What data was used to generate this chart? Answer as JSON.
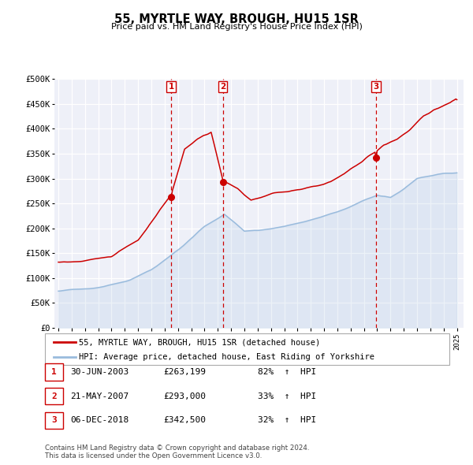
{
  "title": "55, MYRTLE WAY, BROUGH, HU15 1SR",
  "subtitle": "Price paid vs. HM Land Registry's House Price Index (HPI)",
  "ylim": [
    0,
    500000
  ],
  "xlim_start": 1994.7,
  "xlim_end": 2025.5,
  "background_color": "#ffffff",
  "plot_bg_color": "#eef0f8",
  "grid_color": "#ffffff",
  "sale_color": "#cc0000",
  "hpi_color": "#99bbdd",
  "sale_label": "55, MYRTLE WAY, BROUGH, HU15 1SR (detached house)",
  "hpi_label": "HPI: Average price, detached house, East Riding of Yorkshire",
  "transactions": [
    {
      "num": 1,
      "date": "30-JUN-2003",
      "price": 263199,
      "year": 2003.49,
      "pct": "82%",
      "dir": "↑"
    },
    {
      "num": 2,
      "date": "21-MAY-2007",
      "price": 293000,
      "year": 2007.38,
      "pct": "33%",
      "dir": "↑"
    },
    {
      "num": 3,
      "date": "06-DEC-2018",
      "price": 342500,
      "year": 2018.92,
      "pct": "32%",
      "dir": "↑"
    }
  ],
  "footer": "Contains HM Land Registry data © Crown copyright and database right 2024.\nThis data is licensed under the Open Government Licence v3.0.",
  "ytick_labels": [
    "£0",
    "£50K",
    "£100K",
    "£150K",
    "£200K",
    "£250K",
    "£300K",
    "£350K",
    "£400K",
    "£450K",
    "£500K"
  ],
  "ytick_values": [
    0,
    50000,
    100000,
    150000,
    200000,
    250000,
    300000,
    350000,
    400000,
    450000,
    500000
  ]
}
